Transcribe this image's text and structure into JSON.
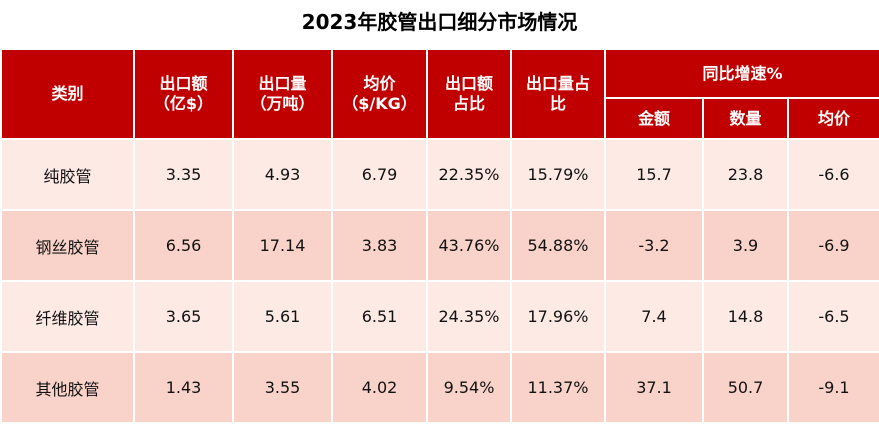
{
  "title": "2023年胶管出口细分市场情况",
  "table": {
    "header": [
      "类别",
      "出口额\n（亿$）",
      "出口量\n（万吨）",
      "均价\n（$/KG）",
      "出口额\n占比",
      "出口量占\n比",
      "同比增速%"
    ],
    "subheader": [
      "金额",
      "数量",
      "均价"
    ],
    "rows": [
      [
        "纯胶管",
        "3.35",
        "4.93",
        "6.79",
        "22.35%",
        "15.79%",
        "15.7",
        "23.8",
        "-6.6"
      ],
      [
        "钢丝胶管",
        "6.56",
        "17.14",
        "3.83",
        "43.76%",
        "54.88%",
        "-3.2",
        "3.9",
        "-6.9"
      ],
      [
        "纤维胶管",
        "3.65",
        "5.61",
        "6.51",
        "24.35%",
        "17.96%",
        "7.4",
        "14.8",
        "-6.5"
      ],
      [
        "其他胶管",
        "1.43",
        "3.55",
        "4.02",
        "9.54%",
        "11.37%",
        "37.1",
        "50.7",
        "-9.1"
      ]
    ]
  }
}
